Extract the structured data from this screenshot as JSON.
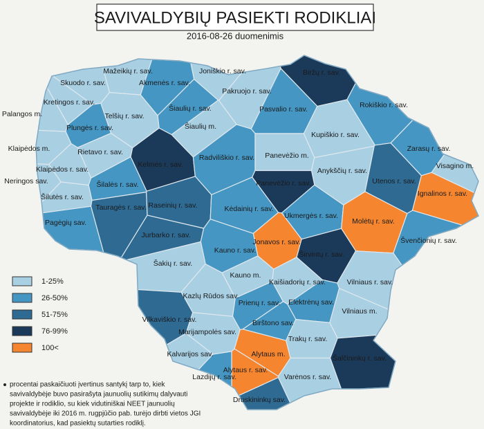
{
  "header": {
    "title": "SAVIVALDYBIŲ PASIEKTI RODIKLIAI",
    "subtitle": "2016-08-26 duomenimis"
  },
  "legend": [
    {
      "label": "1-25%",
      "color": "#a9cfe3"
    },
    {
      "label": "26-50%",
      "color": "#4596c2"
    },
    {
      "label": "51-75%",
      "color": "#2f6a93"
    },
    {
      "label": "76-99%",
      "color": "#1b3a5a"
    },
    {
      "label": "100<",
      "color": "#f5862f"
    }
  ],
  "regions": [
    {
      "name": "Mažeikių r. sav.",
      "color": "#a9cfe3"
    },
    {
      "name": "Joniškio r. sav.",
      "color": "#a9cfe3"
    },
    {
      "name": "Biržų r. sav.",
      "color": "#1b3a5a"
    },
    {
      "name": "Skuodo r. sav.",
      "color": "#a9cfe3"
    },
    {
      "name": "Akmenės r. sav.",
      "color": "#4596c2"
    },
    {
      "name": "Pakruojo r. sav.",
      "color": "#a9cfe3"
    },
    {
      "name": "Kretingos r. sav.",
      "color": "#a9cfe3"
    },
    {
      "name": "Šiaulių r. sav.",
      "color": "#4596c2"
    },
    {
      "name": "Pasvalio r. sav.",
      "color": "#4596c2"
    },
    {
      "name": "Rokiškio r. sav.",
      "color": "#4596c2"
    },
    {
      "name": "Palangos m.",
      "color": "#a9cfe3"
    },
    {
      "name": "Telšių r. sav.",
      "color": "#a9cfe3"
    },
    {
      "name": "Plungės r. sav.",
      "color": "#4596c2"
    },
    {
      "name": "Šiaulių m.",
      "color": "#a9cfe3"
    },
    {
      "name": "Kupiškio r. sav.",
      "color": "#a9cfe3"
    },
    {
      "name": "Klaipėdos m.",
      "color": "#a9cfe3"
    },
    {
      "name": "Rietavo r. sav.",
      "color": "#a9cfe3"
    },
    {
      "name": "Kelmės r. sav.",
      "color": "#1b3a5a"
    },
    {
      "name": "Radviliškio r. sav.",
      "color": "#4596c2"
    },
    {
      "name": "Panevėžio m.",
      "color": "#a9cfe3"
    },
    {
      "name": "Zarasų r. sav.",
      "color": "#4596c2"
    },
    {
      "name": "Anykščių r. sav.",
      "color": "#a9cfe3"
    },
    {
      "name": "Klaipėdos r. sav.",
      "color": "#a9cfe3"
    },
    {
      "name": "Visagino m.",
      "color": "#a9cfe3"
    },
    {
      "name": "Neringos sav.",
      "color": "#a9cfe3"
    },
    {
      "name": "Šilalės r. sav.",
      "color": "#4596c2"
    },
    {
      "name": "Panevėžio r. sav.",
      "color": "#1b3a5a"
    },
    {
      "name": "Utenos r. sav.",
      "color": "#2f6a93"
    },
    {
      "name": "Šilutės r. sav.",
      "color": "#a9cfe3"
    },
    {
      "name": "Tauragės r. sav.",
      "color": "#2f6a93"
    },
    {
      "name": "Raseinių r. sav.",
      "color": "#2f6a93"
    },
    {
      "name": "Kėdainių r. sav.",
      "color": "#4596c2"
    },
    {
      "name": "Ignalinos r. sav.",
      "color": "#f5862f"
    },
    {
      "name": "Ukmergės r. sav.",
      "color": "#4596c2"
    },
    {
      "name": "Molėtų r. sav.",
      "color": "#f5862f"
    },
    {
      "name": "Pagėgių sav.",
      "color": "#4596c2"
    },
    {
      "name": "Jurbarko r. sav.",
      "color": "#2f6a93"
    },
    {
      "name": "Jonavos r. sav.",
      "color": "#f5862f"
    },
    {
      "name": "Švenčionių r. sav.",
      "color": "#4596c2"
    },
    {
      "name": "Kauno r. sav.",
      "color": "#4596c2"
    },
    {
      "name": "Širvintų r. sav.",
      "color": "#1b3a5a"
    },
    {
      "name": "Šakių r. sav.",
      "color": "#a9cfe3"
    },
    {
      "name": "Kauno m.",
      "color": "#a9cfe3"
    },
    {
      "name": "Kaišiadorių r. sav.",
      "color": "#a9cfe3"
    },
    {
      "name": "Vilniaus r. sav.",
      "color": "#a9cfe3"
    },
    {
      "name": "Kazlų Rūdos sav.",
      "color": "#a9cfe3"
    },
    {
      "name": "Prienų r. sav.",
      "color": "#4596c2"
    },
    {
      "name": "Elektrėnų sav.",
      "color": "#4596c2"
    },
    {
      "name": "Vilniaus m.",
      "color": "#a9cfe3"
    },
    {
      "name": "Vilkaviškio r. sav.",
      "color": "#2f6a93"
    },
    {
      "name": "Birštono sav.",
      "color": "#4596c2"
    },
    {
      "name": "Marijampolės sav.",
      "color": "#a9cfe3"
    },
    {
      "name": "Trakų r. sav.",
      "color": "#a9cfe3"
    },
    {
      "name": "Kalvarijos sav.",
      "color": "#a9cfe3"
    },
    {
      "name": "Alytaus m.",
      "color": "#f5862f"
    },
    {
      "name": "Alytaus r. sav.",
      "color": "#f5862f"
    },
    {
      "name": "Šalčininkų r. sav.",
      "color": "#1b3a5a"
    },
    {
      "name": "Lazdijų r. sav.",
      "color": "#4596c2"
    },
    {
      "name": "Varėnos r. sav.",
      "color": "#a9cfe3"
    },
    {
      "name": "Druskininkų sav.",
      "color": "#2f6a93"
    }
  ],
  "footnote": [
    "procentai paskaičiuoti įvertinus santykį tarp to, kiek",
    "savivaldybėje buvo pasirašyta jaunuolių sutikimų dalyvauti",
    "projekte ir rodiklio, su kiek vidutiniškai NEET jaunuolių",
    "savivaldybėje iki 2016 m. rugpjūčio pab. turėjo dirbti vietos JGI",
    "koordinatorius, kad pasiektų sutarties rodiklį."
  ]
}
